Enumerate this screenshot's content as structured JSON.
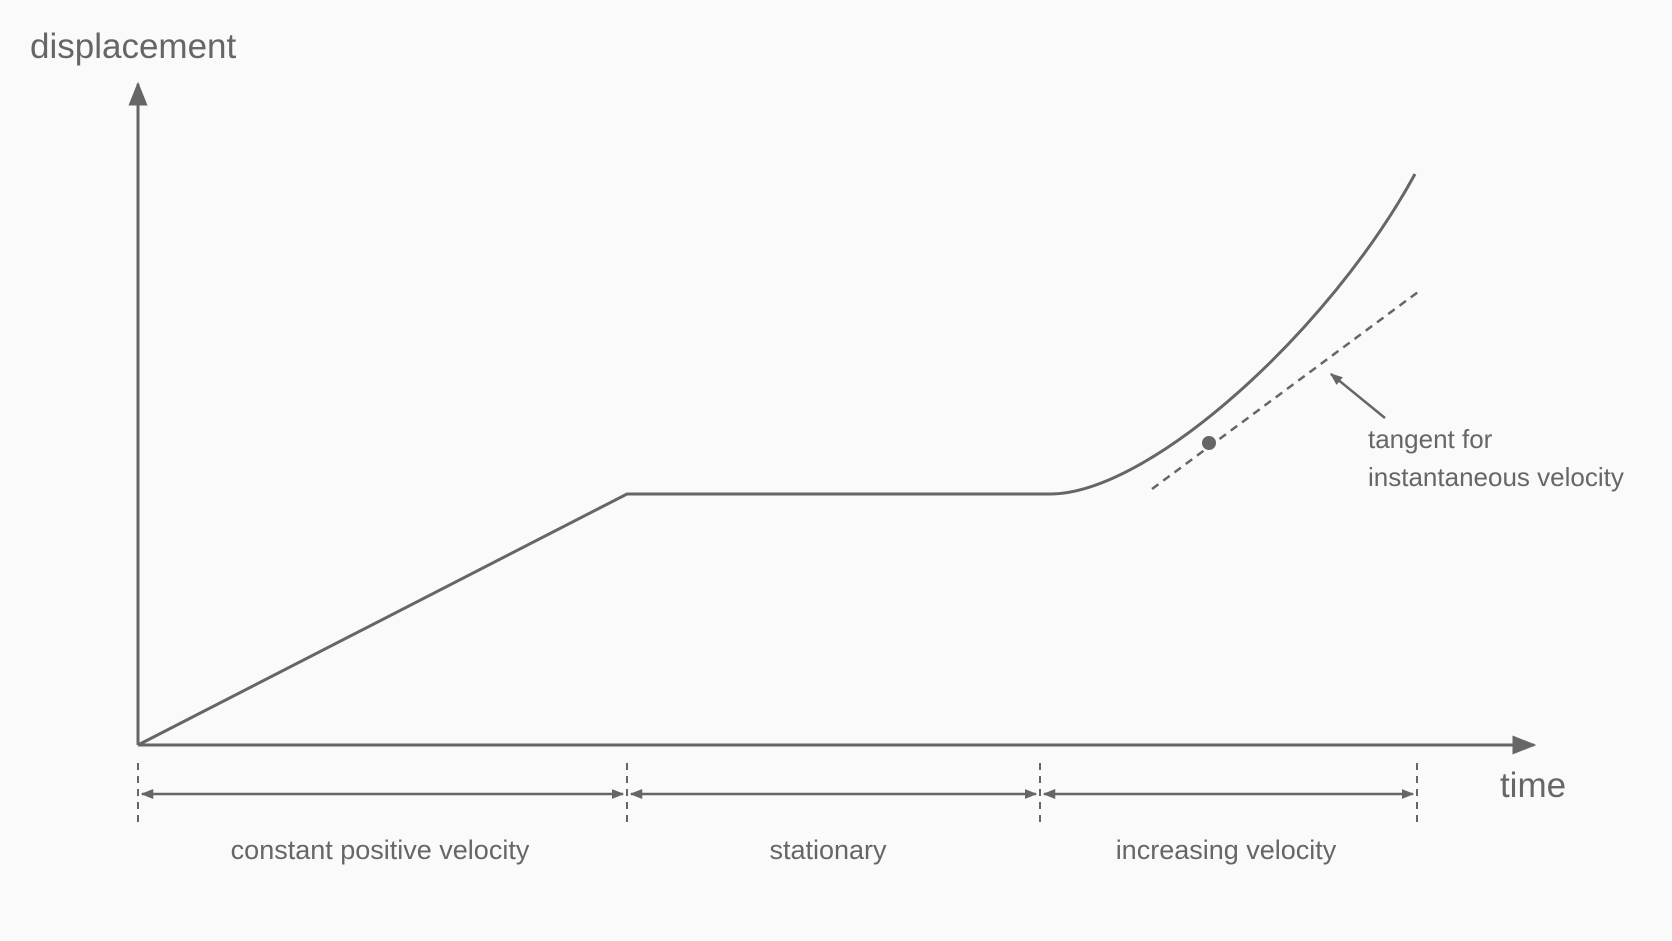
{
  "axes": {
    "y_label": "displacement",
    "x_label": "time"
  },
  "segments": [
    {
      "label": "constant positive velocity"
    },
    {
      "label": "stationary"
    },
    {
      "label": "increasing velocity"
    }
  ],
  "annotation": {
    "lines": [
      "tangent for",
      "instantaneous velocity"
    ]
  }
}
